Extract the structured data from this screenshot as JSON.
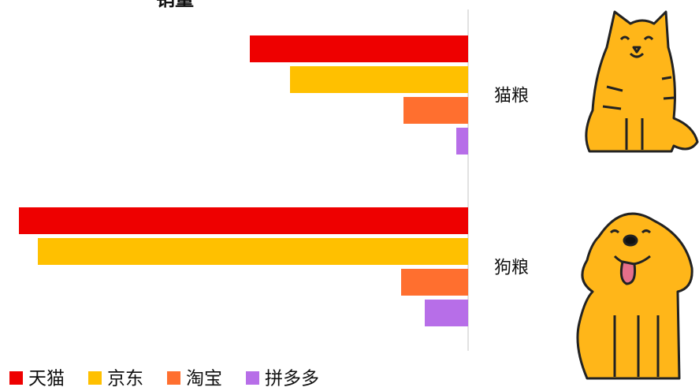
{
  "chart_data": {
    "type": "hbar",
    "title": "销量",
    "categories": [
      "猫粮",
      "狗粮"
    ],
    "series": [
      {
        "name": "天猫",
        "color": "#ee0000",
        "values": [
          277,
          570
        ]
      },
      {
        "name": "京东",
        "color": "#ffc000",
        "values": [
          226,
          546
        ]
      },
      {
        "name": "淘宝",
        "color": "#ff6f2f",
        "values": [
          82,
          85
        ]
      },
      {
        "name": "拼多多",
        "color": "#b76ee8",
        "values": [
          15,
          55
        ]
      }
    ],
    "xlim": [
      0,
      570
    ],
    "legend": "bottom"
  }
}
